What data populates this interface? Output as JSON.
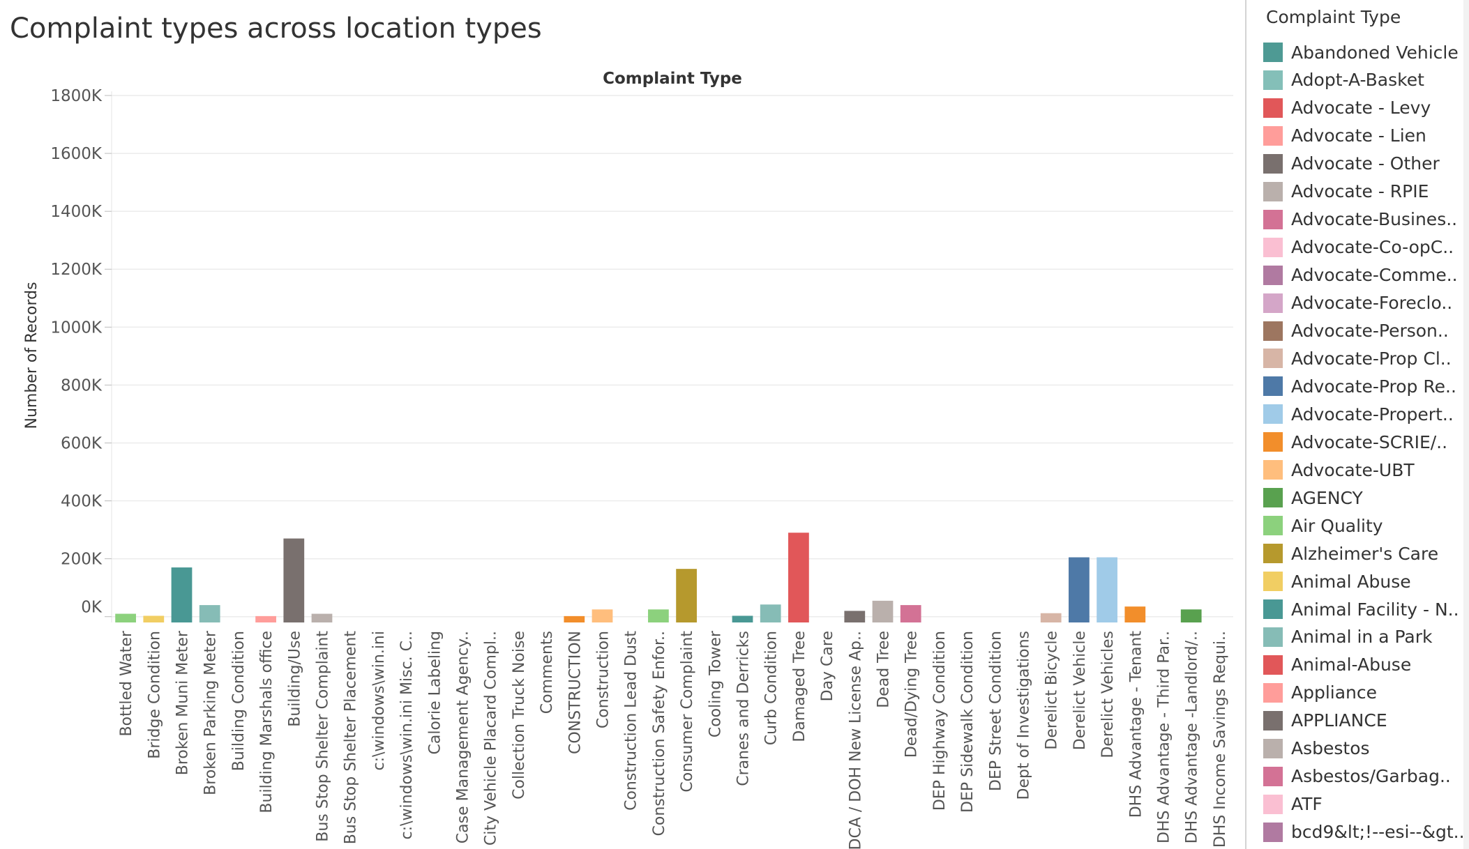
{
  "page": {
    "title": "Complaint types across location types"
  },
  "legend": {
    "title": "Complaint Type",
    "items": [
      {
        "label": "Abandoned Vehicle",
        "color": "#4e9a94"
      },
      {
        "label": "Adopt-A-Basket",
        "color": "#84bfb8"
      },
      {
        "label": "Advocate - Levy",
        "color": "#e15759"
      },
      {
        "label": "Advocate - Lien",
        "color": "#ff9d9a"
      },
      {
        "label": "Advocate - Other",
        "color": "#79706e"
      },
      {
        "label": "Advocate - RPIE",
        "color": "#bab0ac"
      },
      {
        "label": "Advocate-Busines..",
        "color": "#d37295"
      },
      {
        "label": "Advocate-Co-opC..",
        "color": "#fabfd2"
      },
      {
        "label": "Advocate-Comme..",
        "color": "#b07aa1"
      },
      {
        "label": "Advocate-Foreclo..",
        "color": "#d4a6c8"
      },
      {
        "label": "Advocate-Person..",
        "color": "#9d7660"
      },
      {
        "label": "Advocate-Prop Cl..",
        "color": "#d7b5a6"
      },
      {
        "label": "Advocate-Prop Re..",
        "color": "#4e79a7"
      },
      {
        "label": "Advocate-Propert..",
        "color": "#a0cbe8"
      },
      {
        "label": "Advocate-SCRIE/..",
        "color": "#f28e2b"
      },
      {
        "label": "Advocate-UBT",
        "color": "#ffbe7d"
      },
      {
        "label": "AGENCY",
        "color": "#59a14f"
      },
      {
        "label": "Air Quality",
        "color": "#8cd17d"
      },
      {
        "label": "Alzheimer's Care",
        "color": "#b6992d"
      },
      {
        "label": "Animal Abuse",
        "color": "#f1ce63"
      },
      {
        "label": "Animal Facility - N..",
        "color": "#499894"
      },
      {
        "label": "Animal in a Park",
        "color": "#86bcb6"
      },
      {
        "label": "Animal-Abuse",
        "color": "#e15759"
      },
      {
        "label": "Appliance",
        "color": "#ff9d9a"
      },
      {
        "label": "APPLIANCE",
        "color": "#79706e"
      },
      {
        "label": "Asbestos",
        "color": "#bab0ac"
      },
      {
        "label": "Asbestos/Garbag..",
        "color": "#d37295"
      },
      {
        "label": "ATF",
        "color": "#fabfd2"
      },
      {
        "label": "bcd9&lt;!--esi--&gt..",
        "color": "#b07aa1"
      }
    ]
  },
  "chart_data": {
    "type": "bar",
    "title": "Complaint Type",
    "xlabel": "",
    "ylabel": "Number of Records",
    "ylim": [
      -20000,
      1800000
    ],
    "yticks": [
      {
        "value": 0,
        "label": "0K"
      },
      {
        "value": 200000,
        "label": "200K"
      },
      {
        "value": 400000,
        "label": "400K"
      },
      {
        "value": 600000,
        "label": "600K"
      },
      {
        "value": 800000,
        "label": "800K"
      },
      {
        "value": 1000000,
        "label": "1000K"
      },
      {
        "value": 1200000,
        "label": "1200K"
      },
      {
        "value": 1400000,
        "label": "1400K"
      },
      {
        "value": 1600000,
        "label": "1600K"
      },
      {
        "value": 1800000,
        "label": "1800K"
      }
    ],
    "grid": true,
    "categories": [
      {
        "label": "Bottled Water",
        "value": 10000,
        "color": "#8cd17d"
      },
      {
        "label": "Bridge Condition",
        "value": 3000,
        "color": "#f1ce63"
      },
      {
        "label": "Broken Muni Meter",
        "value": 170000,
        "color": "#499894"
      },
      {
        "label": "Broken Parking Meter",
        "value": 40000,
        "color": "#86bcb6"
      },
      {
        "label": "Building Condition",
        "value": 0,
        "color": "#e15759"
      },
      {
        "label": "Building Marshals office",
        "value": 2000,
        "color": "#ff9d9a"
      },
      {
        "label": "Building/Use",
        "value": 270000,
        "color": "#79706e"
      },
      {
        "label": "Bus Stop Shelter Complaint",
        "value": 10000,
        "color": "#bab0ac"
      },
      {
        "label": "Bus Stop Shelter Placement",
        "value": 0,
        "color": "#d37295"
      },
      {
        "label": "c:\\windows\\win.ini",
        "value": 0,
        "color": "#fabfd2"
      },
      {
        "label": "c:\\windows\\win.ini Misc. C..",
        "value": 0,
        "color": "#b07aa1"
      },
      {
        "label": "Calorie Labeling",
        "value": 0,
        "color": "#d4a6c8"
      },
      {
        "label": "Case Management Agency..",
        "value": 0,
        "color": "#9d7660"
      },
      {
        "label": "City Vehicle Placard Compl..",
        "value": 0,
        "color": "#d7b5a6"
      },
      {
        "label": "Collection Truck Noise",
        "value": 0,
        "color": "#4e79a7"
      },
      {
        "label": "Comments",
        "value": 0,
        "color": "#a0cbe8"
      },
      {
        "label": "CONSTRUCTION",
        "value": 2000,
        "color": "#f28e2b"
      },
      {
        "label": "Construction",
        "value": 25000,
        "color": "#ffbe7d"
      },
      {
        "label": "Construction Lead Dust",
        "value": 0,
        "color": "#59a14f"
      },
      {
        "label": "Construction Safety Enfor..",
        "value": 25000,
        "color": "#8cd17d"
      },
      {
        "label": "Consumer Complaint",
        "value": 165000,
        "color": "#b6992d"
      },
      {
        "label": "Cooling Tower",
        "value": 0,
        "color": "#f1ce63"
      },
      {
        "label": "Cranes and Derricks",
        "value": 3000,
        "color": "#499894"
      },
      {
        "label": "Curb Condition",
        "value": 42000,
        "color": "#86bcb6"
      },
      {
        "label": "Damaged Tree",
        "value": 290000,
        "color": "#e15759"
      },
      {
        "label": "Day Care",
        "value": 0,
        "color": "#ff9d9a"
      },
      {
        "label": "DCA / DOH New License Ap..",
        "value": 20000,
        "color": "#79706e"
      },
      {
        "label": "Dead Tree",
        "value": 55000,
        "color": "#bab0ac"
      },
      {
        "label": "Dead/Dying Tree",
        "value": 40000,
        "color": "#d37295"
      },
      {
        "label": "DEP Highway Condition",
        "value": 0,
        "color": "#fabfd2"
      },
      {
        "label": "DEP Sidewalk Condition",
        "value": 0,
        "color": "#b07aa1"
      },
      {
        "label": "DEP Street Condition",
        "value": 0,
        "color": "#d4a6c8"
      },
      {
        "label": "Dept of Investigations",
        "value": 0,
        "color": "#9d7660"
      },
      {
        "label": "Derelict Bicycle",
        "value": 12000,
        "color": "#d7b5a6"
      },
      {
        "label": "Derelict Vehicle",
        "value": 205000,
        "color": "#4e79a7"
      },
      {
        "label": "Derelict Vehicles",
        "value": 205000,
        "color": "#a0cbe8"
      },
      {
        "label": "DHS Advantage - Tenant",
        "value": 35000,
        "color": "#f28e2b"
      },
      {
        "label": "DHS Advantage - Third Par..",
        "value": 0,
        "color": "#ffbe7d"
      },
      {
        "label": "DHS Advantage -Landlord/..",
        "value": 25000,
        "color": "#59a14f"
      },
      {
        "label": "DHS Income Savings Requi..",
        "value": 0,
        "color": "#8cd17d"
      }
    ]
  }
}
